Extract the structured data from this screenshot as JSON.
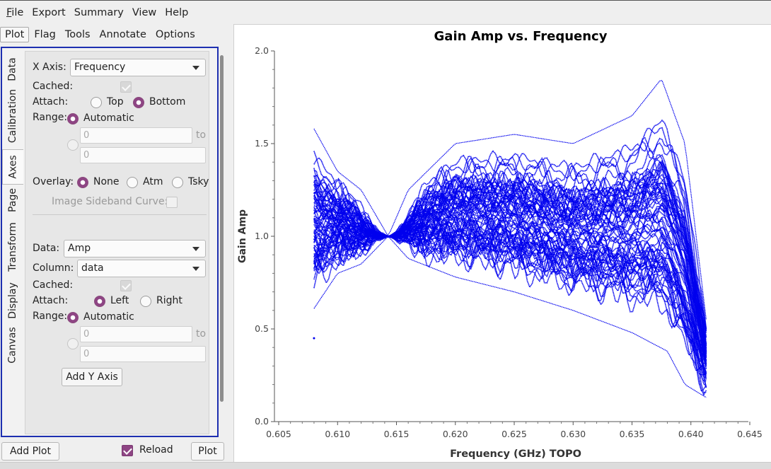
{
  "menu": [
    "File",
    "Export",
    "Summary",
    "View",
    "Help"
  ],
  "toolbar": [
    "Plot",
    "Flag",
    "Tools",
    "Annotate",
    "Options"
  ],
  "side_tabs": [
    "Data",
    "Calibration",
    "Axes",
    "Page",
    "Transform",
    "Display",
    "Canvas"
  ],
  "axes": {
    "x_axis_label": "X Axis:",
    "x_axis_value": "Frequency",
    "cached_label": "Cached:",
    "attach_label": "Attach:",
    "x_attach": [
      "Top",
      "Bottom"
    ],
    "range_label": "Range:",
    "automatic_label": "Automatic",
    "x_range_min": "0",
    "x_range_to": "to",
    "x_range_max": "0",
    "overlay_label": "Overlay:",
    "overlay_options": [
      "None",
      "Atm",
      "Tsky"
    ],
    "image_sideband_label": "Image Sideband Curve:",
    "data_label": "Data:",
    "data_value": "Amp",
    "column_label": "Column:",
    "column_value": "data",
    "y_cached_label": "Cached:",
    "y_attach_label": "Attach:",
    "y_attach": [
      "Left",
      "Right"
    ],
    "y_range_label": "Range:",
    "y_automatic_label": "Automatic",
    "y_range_min": "0",
    "y_range_to": "to",
    "y_range_max": "0",
    "add_y_axis": "Add Y Axis"
  },
  "bottom": {
    "add_plot": "Add Plot",
    "reload": "Reload",
    "plot": "Plot"
  },
  "chart_data": {
    "type": "scatter",
    "title": "Gain Amp vs. Frequency",
    "xlabel": "Frequency (GHz) TOPO",
    "ylabel": "Gain Amp",
    "xlim": [
      0.605,
      0.645
    ],
    "ylim": [
      0.0,
      2.0
    ],
    "x_ticks": [
      "0.605",
      "0.610",
      "0.615",
      "0.620",
      "0.625",
      "0.630",
      "0.635",
      "0.640",
      "0.645"
    ],
    "y_ticks": [
      "0.0",
      "0.5",
      "1.0",
      "1.5",
      "2.0"
    ],
    "grid": false,
    "series_color": "#0000ee",
    "x_extent": [
      0.608,
      0.6413
    ],
    "pinch_point": {
      "x": 0.6143,
      "y": 1.0
    },
    "envelope_upper": [
      [
        0.608,
        1.58
      ],
      [
        0.61,
        1.35
      ],
      [
        0.612,
        1.25
      ],
      [
        0.6143,
        1.0
      ],
      [
        0.616,
        1.25
      ],
      [
        0.62,
        1.5
      ],
      [
        0.625,
        1.55
      ],
      [
        0.63,
        1.5
      ],
      [
        0.635,
        1.65
      ],
      [
        0.6375,
        1.85
      ],
      [
        0.6395,
        1.5
      ],
      [
        0.6413,
        0.55
      ]
    ],
    "envelope_lower": [
      [
        0.608,
        0.61
      ],
      [
        0.61,
        0.8
      ],
      [
        0.612,
        0.85
      ],
      [
        0.6143,
        1.0
      ],
      [
        0.616,
        0.88
      ],
      [
        0.62,
        0.78
      ],
      [
        0.625,
        0.7
      ],
      [
        0.63,
        0.6
      ],
      [
        0.635,
        0.48
      ],
      [
        0.638,
        0.38
      ],
      [
        0.6395,
        0.2
      ],
      [
        0.6413,
        0.13
      ]
    ],
    "outlier_point": {
      "x": 0.608,
      "y": 0.45
    }
  }
}
